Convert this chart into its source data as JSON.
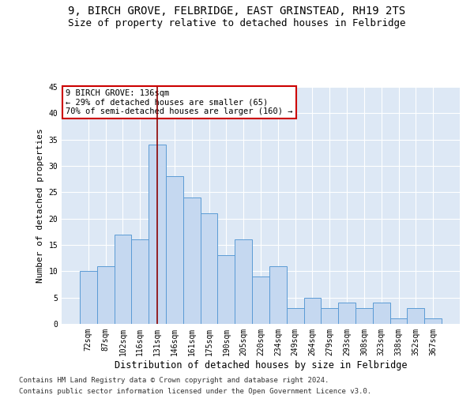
{
  "title1": "9, BIRCH GROVE, FELBRIDGE, EAST GRINSTEAD, RH19 2TS",
  "title2": "Size of property relative to detached houses in Felbridge",
  "xlabel": "Distribution of detached houses by size in Felbridge",
  "ylabel": "Number of detached properties",
  "categories": [
    "72sqm",
    "87sqm",
    "102sqm",
    "116sqm",
    "131sqm",
    "146sqm",
    "161sqm",
    "175sqm",
    "190sqm",
    "205sqm",
    "220sqm",
    "234sqm",
    "249sqm",
    "264sqm",
    "279sqm",
    "293sqm",
    "308sqm",
    "323sqm",
    "338sqm",
    "352sqm",
    "367sqm"
  ],
  "values": [
    10,
    11,
    17,
    16,
    34,
    28,
    24,
    21,
    13,
    16,
    9,
    11,
    3,
    5,
    3,
    4,
    3,
    4,
    1,
    3,
    1
  ],
  "bar_color": "#c5d8f0",
  "bar_edgecolor": "#5b9bd5",
  "vline_x": 4,
  "vline_color": "#8b0000",
  "annotation_text": "9 BIRCH GROVE: 136sqm\n← 29% of detached houses are smaller (65)\n70% of semi-detached houses are larger (160) →",
  "annotation_box_edgecolor": "#cc0000",
  "annotation_box_facecolor": "#ffffff",
  "ylim": [
    0,
    45
  ],
  "yticks": [
    0,
    5,
    10,
    15,
    20,
    25,
    30,
    35,
    40,
    45
  ],
  "footnote1": "Contains HM Land Registry data © Crown copyright and database right 2024.",
  "footnote2": "Contains public sector information licensed under the Open Government Licence v3.0.",
  "bg_color": "#dde8f5",
  "title1_fontsize": 10,
  "title2_fontsize": 9,
  "xlabel_fontsize": 8.5,
  "ylabel_fontsize": 8,
  "tick_fontsize": 7,
  "annotation_fontsize": 7.5,
  "footnote_fontsize": 6.5
}
